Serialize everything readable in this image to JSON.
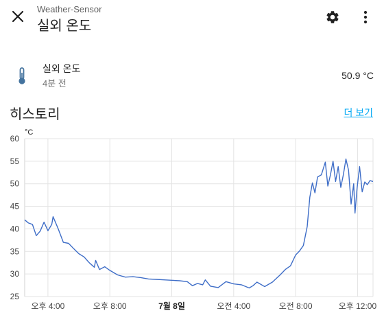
{
  "header": {
    "subtitle": "Weather-Sensor",
    "title": "실외 온도"
  },
  "icons": {
    "close": "close-icon",
    "settings": "gear-icon",
    "more": "more-vert-icon",
    "entity": "thermometer-icon"
  },
  "entity": {
    "name": "실외 온도",
    "time": "4분 전",
    "value": "50.9 °C"
  },
  "history": {
    "title": "히스토리",
    "more_link": "더 보기"
  },
  "colors": {
    "line": "#3e6dc7",
    "link": "#03a9f4",
    "icon": "#44739e"
  },
  "chart_data": {
    "type": "line",
    "ylabel": "°C",
    "ylim": [
      25,
      60
    ],
    "yticks": [
      25,
      30,
      35,
      40,
      45,
      50,
      55,
      60
    ],
    "xlim": [
      "2024-07-07 14:30",
      "2024-07-08 13:00"
    ],
    "xticks": [
      {
        "label": "오후 4:00",
        "t": "2024-07-07 16:00",
        "bold": false
      },
      {
        "label": "오후 8:00",
        "t": "2024-07-07 20:00",
        "bold": false
      },
      {
        "label": "7월 8일",
        "t": "2024-07-08 00:00",
        "bold": true
      },
      {
        "label": "오전 4:00",
        "t": "2024-07-08 04:00",
        "bold": false
      },
      {
        "label": "오전 8:00",
        "t": "2024-07-08 08:00",
        "bold": false
      },
      {
        "label": "오후 12:00",
        "t": "2024-07-08 12:00",
        "bold": false
      }
    ],
    "grid": true,
    "series": [
      {
        "points": [
          [
            "2024-07-07 14:30",
            42.0
          ],
          [
            "2024-07-07 14:45",
            41.3
          ],
          [
            "2024-07-07 15:00",
            41.0
          ],
          [
            "2024-07-07 15:15",
            38.5
          ],
          [
            "2024-07-07 15:30",
            39.5
          ],
          [
            "2024-07-07 15:45",
            41.5
          ],
          [
            "2024-07-07 16:00",
            39.6
          ],
          [
            "2024-07-07 16:15",
            41.0
          ],
          [
            "2024-07-07 16:20",
            42.7
          ],
          [
            "2024-07-07 16:40",
            40.0
          ],
          [
            "2024-07-07 17:00",
            37.0
          ],
          [
            "2024-07-07 17:20",
            36.8
          ],
          [
            "2024-07-07 17:40",
            35.6
          ],
          [
            "2024-07-07 18:00",
            34.5
          ],
          [
            "2024-07-07 18:20",
            33.8
          ],
          [
            "2024-07-07 18:40",
            32.5
          ],
          [
            "2024-07-07 19:00",
            31.5
          ],
          [
            "2024-07-07 19:05",
            33.0
          ],
          [
            "2024-07-07 19:20",
            31.0
          ],
          [
            "2024-07-07 19:40",
            31.6
          ],
          [
            "2024-07-07 20:00",
            30.8
          ],
          [
            "2024-07-07 20:30",
            29.8
          ],
          [
            "2024-07-07 21:00",
            29.3
          ],
          [
            "2024-07-07 21:30",
            29.4
          ],
          [
            "2024-07-07 22:00",
            29.2
          ],
          [
            "2024-07-07 22:30",
            28.9
          ],
          [
            "2024-07-07 23:00",
            28.8
          ],
          [
            "2024-07-07 23:30",
            28.7
          ],
          [
            "2024-07-08 00:00",
            28.6
          ],
          [
            "2024-07-08 00:30",
            28.5
          ],
          [
            "2024-07-08 01:00",
            28.3
          ],
          [
            "2024-07-08 01:20",
            27.4
          ],
          [
            "2024-07-08 01:40",
            27.9
          ],
          [
            "2024-07-08 02:00",
            27.6
          ],
          [
            "2024-07-08 02:10",
            28.7
          ],
          [
            "2024-07-08 02:30",
            27.3
          ],
          [
            "2024-07-08 03:00",
            27.0
          ],
          [
            "2024-07-08 03:30",
            28.3
          ],
          [
            "2024-07-08 04:00",
            27.8
          ],
          [
            "2024-07-08 04:30",
            27.6
          ],
          [
            "2024-07-08 05:00",
            26.9
          ],
          [
            "2024-07-08 05:15",
            27.4
          ],
          [
            "2024-07-08 05:30",
            28.2
          ],
          [
            "2024-07-08 06:00",
            27.2
          ],
          [
            "2024-07-08 06:30",
            28.2
          ],
          [
            "2024-07-08 07:00",
            29.8
          ],
          [
            "2024-07-08 07:20",
            31.0
          ],
          [
            "2024-07-08 07:40",
            31.8
          ],
          [
            "2024-07-08 08:00",
            34.2
          ],
          [
            "2024-07-08 08:15",
            35.1
          ],
          [
            "2024-07-08 08:30",
            36.3
          ],
          [
            "2024-07-08 08:45",
            40.5
          ],
          [
            "2024-07-08 08:55",
            47.0
          ],
          [
            "2024-07-08 09:05",
            50.2
          ],
          [
            "2024-07-08 09:15",
            48.0
          ],
          [
            "2024-07-08 09:25",
            51.5
          ],
          [
            "2024-07-08 09:40",
            52.0
          ],
          [
            "2024-07-08 09:55",
            54.8
          ],
          [
            "2024-07-08 10:05",
            49.5
          ],
          [
            "2024-07-08 10:15",
            52.0
          ],
          [
            "2024-07-08 10:25",
            55.0
          ],
          [
            "2024-07-08 10:35",
            50.5
          ],
          [
            "2024-07-08 10:45",
            53.8
          ],
          [
            "2024-07-08 10:55",
            49.2
          ],
          [
            "2024-07-08 11:05",
            52.0
          ],
          [
            "2024-07-08 11:15",
            55.5
          ],
          [
            "2024-07-08 11:25",
            53.0
          ],
          [
            "2024-07-08 11:35",
            45.5
          ],
          [
            "2024-07-08 11:45",
            50.0
          ],
          [
            "2024-07-08 11:50",
            43.5
          ],
          [
            "2024-07-08 11:58",
            49.0
          ],
          [
            "2024-07-08 12:08",
            53.8
          ],
          [
            "2024-07-08 12:18",
            48.2
          ],
          [
            "2024-07-08 12:28",
            50.4
          ],
          [
            "2024-07-08 12:38",
            49.8
          ],
          [
            "2024-07-08 12:48",
            50.7
          ],
          [
            "2024-07-08 13:00",
            50.5
          ]
        ]
      }
    ]
  }
}
